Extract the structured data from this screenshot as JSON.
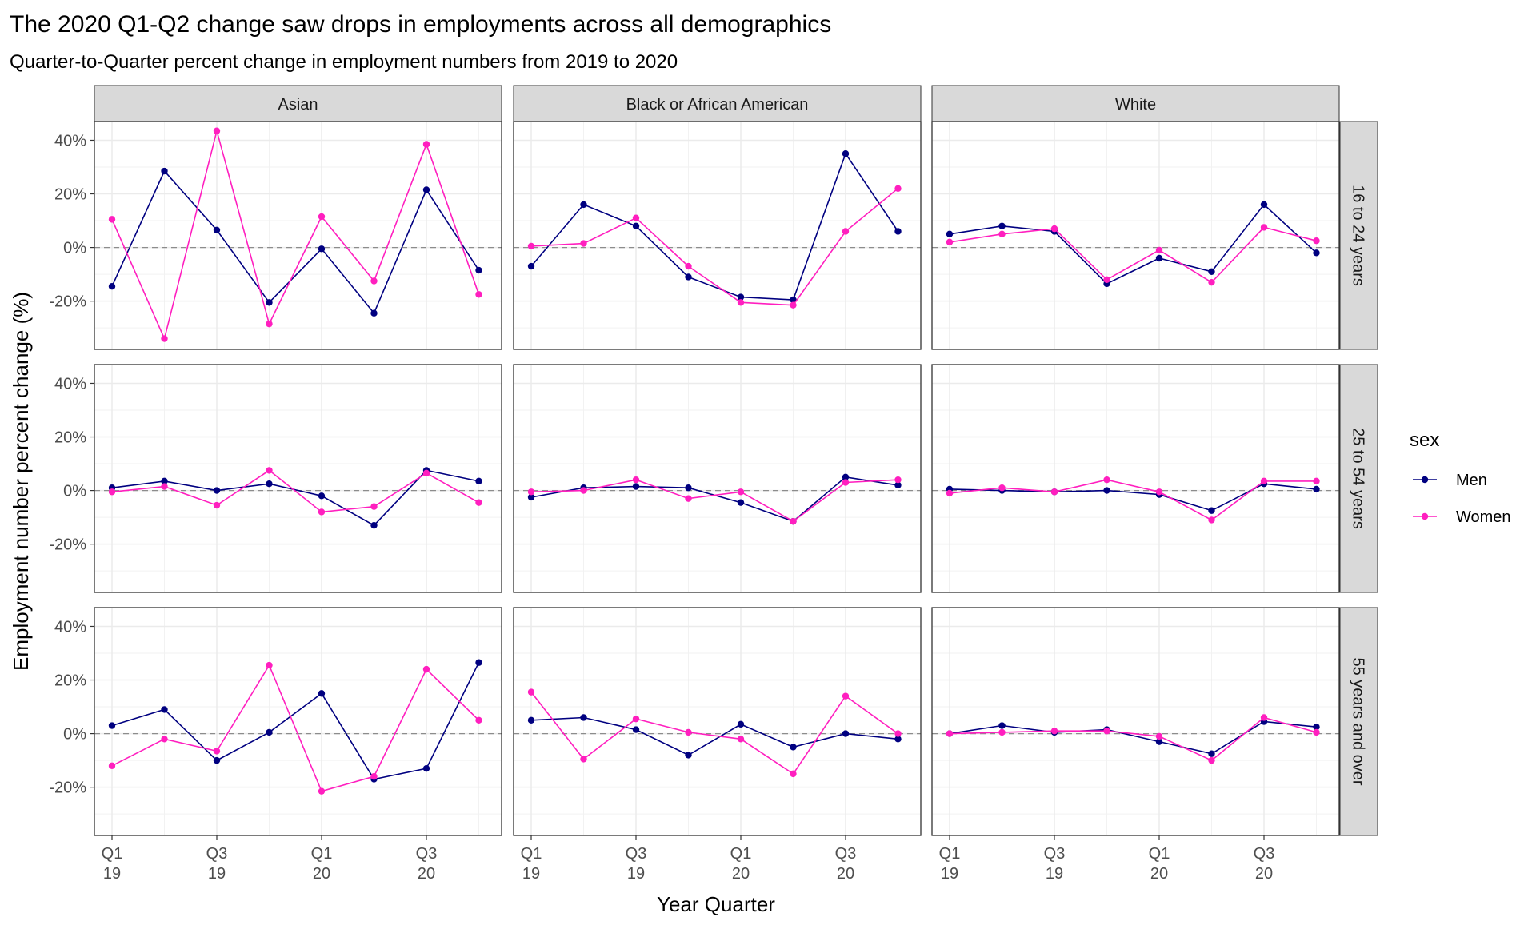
{
  "chart_data": {
    "type": "line",
    "title": "The 2020 Q1-Q2 change saw drops in employments across all demographics",
    "subtitle": "Quarter-to-Quarter percent change in employment numbers from 2019 to 2020",
    "xlabel": "Year Quarter",
    "ylabel": "Employment number percent change (%)",
    "ylim": [
      -38,
      47
    ],
    "y_ticks": [
      -20,
      0,
      20,
      40
    ],
    "y_tick_labels": [
      "-20%",
      "0%",
      "20%",
      "40%"
    ],
    "x_ticks": [
      {
        "index": 0,
        "quarter": "Q1",
        "year": "19"
      },
      {
        "index": 2,
        "quarter": "Q3",
        "year": "19"
      },
      {
        "index": 4,
        "quarter": "Q1",
        "year": "20"
      },
      {
        "index": 6,
        "quarter": "Q3",
        "year": "20"
      }
    ],
    "x": [
      "2019 Q1",
      "2019 Q2",
      "2019 Q3",
      "2019 Q4",
      "2020 Q1",
      "2020 Q2",
      "2020 Q3",
      "2020 Q4"
    ],
    "reference_line": 0,
    "grid": true,
    "columns": [
      "Asian",
      "Black or African American",
      "White"
    ],
    "rows": [
      "16 to 24 years",
      "25 to 54 years",
      "55 years and over"
    ],
    "legend": {
      "title": "sex",
      "position": "right",
      "entries": [
        {
          "name": "Men",
          "color": "#000080"
        },
        {
          "name": "Women",
          "color": "#ff1fbf"
        }
      ]
    },
    "panels": [
      {
        "column": "Asian",
        "row": "16 to 24 years",
        "series": [
          {
            "name": "Men",
            "values": [
              -14.5,
              28.5,
              6.5,
              -20.5,
              -0.5,
              -24.5,
              21.5,
              -8.5
            ]
          },
          {
            "name": "Women",
            "values": [
              10.5,
              -34,
              43.5,
              -28.5,
              11.5,
              -12.5,
              38.5,
              -17.5
            ]
          }
        ]
      },
      {
        "column": "Black or African American",
        "row": "16 to 24 years",
        "series": [
          {
            "name": "Men",
            "values": [
              -7,
              16,
              8,
              -11,
              -18.5,
              -19.5,
              35,
              6
            ]
          },
          {
            "name": "Women",
            "values": [
              0.5,
              1.5,
              11,
              -7,
              -20.5,
              -21.5,
              6,
              22
            ]
          }
        ]
      },
      {
        "column": "White",
        "row": "16 to 24 years",
        "series": [
          {
            "name": "Men",
            "values": [
              5,
              8,
              6,
              -13.5,
              -4,
              -9,
              16,
              -2
            ]
          },
          {
            "name": "Women",
            "values": [
              2,
              5,
              7,
              -12,
              -1,
              -13,
              7.5,
              2.5
            ]
          }
        ]
      },
      {
        "column": "Asian",
        "row": "25 to 54 years",
        "series": [
          {
            "name": "Men",
            "values": [
              1,
              3.5,
              0,
              2.5,
              -2,
              -13,
              7.5,
              3.5
            ]
          },
          {
            "name": "Women",
            "values": [
              -0.5,
              1.5,
              -5.5,
              7.5,
              -8,
              -6,
              6.5,
              -4.5
            ]
          }
        ]
      },
      {
        "column": "Black or African American",
        "row": "25 to 54 years",
        "series": [
          {
            "name": "Men",
            "values": [
              -2.5,
              1,
              1.5,
              1,
              -4.5,
              -11.5,
              5,
              2
            ]
          },
          {
            "name": "Women",
            "values": [
              -0.5,
              0,
              4,
              -3,
              -0.5,
              -11.5,
              3,
              4
            ]
          }
        ]
      },
      {
        "column": "White",
        "row": "25 to 54 years",
        "series": [
          {
            "name": "Men",
            "values": [
              0.5,
              0,
              -0.5,
              0,
              -1.5,
              -7.5,
              2.5,
              0.5
            ]
          },
          {
            "name": "Women",
            "values": [
              -1,
              1,
              -0.5,
              4,
              -0.5,
              -11,
              3.5,
              3.5
            ]
          }
        ]
      },
      {
        "column": "Asian",
        "row": "55 years and over",
        "series": [
          {
            "name": "Men",
            "values": [
              3,
              9,
              -10,
              0.5,
              15,
              -17,
              -13,
              26.5
            ]
          },
          {
            "name": "Women",
            "values": [
              -12,
              -2,
              -6.5,
              25.5,
              -21.5,
              -16,
              24,
              5
            ]
          }
        ]
      },
      {
        "column": "Black or African American",
        "row": "55 years and over",
        "series": [
          {
            "name": "Men",
            "values": [
              5,
              6,
              1.5,
              -8,
              3.5,
              -5,
              0,
              -2
            ]
          },
          {
            "name": "Women",
            "values": [
              15.5,
              -9.5,
              5.5,
              0.5,
              -2,
              -15,
              14,
              0
            ]
          }
        ]
      },
      {
        "column": "White",
        "row": "55 years and over",
        "series": [
          {
            "name": "Men",
            "values": [
              0,
              3,
              0.5,
              1.5,
              -3,
              -7.5,
              4.5,
              2.5
            ]
          },
          {
            "name": "Women",
            "values": [
              0,
              0.5,
              1,
              1,
              -1,
              -10,
              6,
              0.5
            ]
          }
        ]
      }
    ]
  }
}
